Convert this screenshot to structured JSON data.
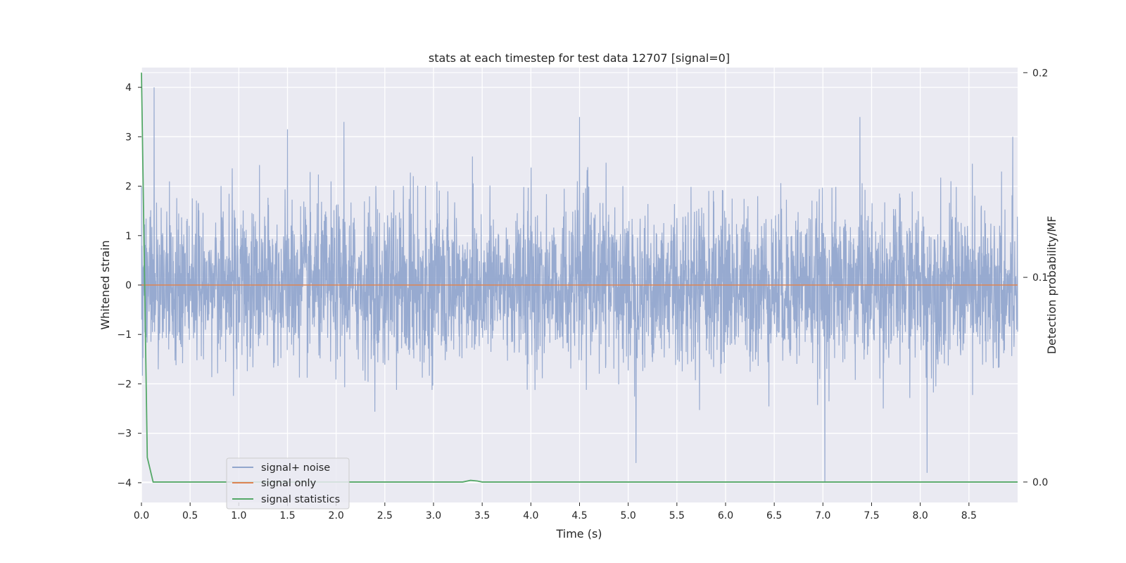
{
  "chart_data": {
    "type": "line",
    "title": "stats at each timestep for test data 12707 [signal=0]",
    "xlabel": "Time (s)",
    "ylabel": "Whitened strain",
    "y2label": "Detection probability/MF",
    "xlim": [
      0,
      9.0
    ],
    "ylim": [
      -4.4,
      4.4
    ],
    "y2lim": [
      -0.01,
      0.2025
    ],
    "x_ticks": [
      0.0,
      0.5,
      1.0,
      1.5,
      2.0,
      2.5,
      3.0,
      3.5,
      4.0,
      4.5,
      5.0,
      5.5,
      6.0,
      6.5,
      7.0,
      7.5,
      8.0,
      8.5
    ],
    "x_tick_labels": [
      "0.0",
      "0.5",
      "1.0",
      "1.5",
      "2.0",
      "2.5",
      "3.0",
      "3.5",
      "4.0",
      "4.5",
      "5.0",
      "5.5",
      "6.0",
      "6.5",
      "7.0",
      "7.5",
      "8.0",
      "8.5"
    ],
    "y_ticks": [
      4,
      3,
      2,
      1,
      0,
      -1,
      -2,
      -3,
      -4
    ],
    "y_tick_labels": [
      "4",
      "3",
      "2",
      "1",
      "0",
      "−1",
      "−2",
      "−3",
      "−4"
    ],
    "y2_ticks": [
      0.2,
      0.1,
      0.0
    ],
    "y2_tick_labels": [
      "0.2",
      "0.1",
      "0.0"
    ],
    "grid": true,
    "legend_position": "lower-left",
    "series": [
      {
        "name": "signal+ noise",
        "axis": "left",
        "color": "#92a6cd",
        "description": "noise",
        "x": [
          0.0,
          0.13,
          1.5,
          2.08,
          3.4,
          4.5,
          5.08,
          7.02,
          7.38,
          8.07,
          8.95
        ],
        "y": [
          2.0,
          4.0,
          3.15,
          3.3,
          2.6,
          3.4,
          -3.6,
          -4.0,
          3.4,
          -3.8,
          3.0
        ]
      },
      {
        "name": "signal only",
        "axis": "left",
        "color": "#dd8452",
        "x": [
          0.0,
          9.0
        ],
        "y": [
          0,
          0
        ]
      },
      {
        "name": "signal statistics",
        "axis": "right",
        "color": "#55a868",
        "x": [
          0.0,
          0.06,
          0.12,
          0.5,
          1.0,
          2.0,
          3.0,
          3.3,
          3.38,
          3.45,
          3.5,
          4.0,
          5.0,
          6.0,
          7.0,
          8.0,
          9.0
        ],
        "y": [
          0.2,
          0.012,
          0.0,
          0.0,
          0.0,
          0.0,
          0.0,
          0.0,
          0.0008,
          0.0005,
          0.0,
          0.0,
          0.0,
          0.0,
          0.0,
          0.0,
          0.0
        ]
      }
    ]
  }
}
